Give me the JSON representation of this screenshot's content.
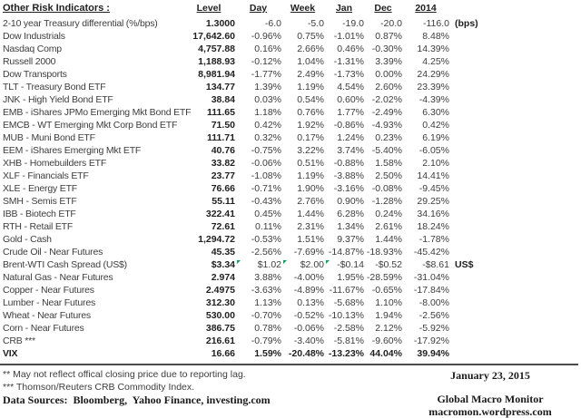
{
  "colors": {
    "flag_green": "#00a651",
    "text": "#3d3d3d",
    "bold_text": "#1f1f1f",
    "rule": "#4a4a4a"
  },
  "chart_data": {
    "type": "table",
    "title": "Other Risk Indicators :",
    "columns": [
      "Level",
      "Day",
      "Week",
      "Jan",
      "Dec",
      "2014"
    ],
    "rows": [
      {
        "name": "2-10 year Treasury differential (%/bps)",
        "level": "1.3000",
        "day": "-6.0",
        "week": "-5.0",
        "jan": "-19.0",
        "dec": "-20.0",
        "y2014": "-116.0",
        "unit": "(bps)"
      },
      {
        "name": "Dow Industrials",
        "level": "17,642.60",
        "day": "-0.96%",
        "week": "0.75%",
        "jan": "-1.01%",
        "dec": "0.87%",
        "y2014": "8.48%"
      },
      {
        "name": "Nasdaq Comp",
        "level": "4,757.88",
        "day": "0.16%",
        "week": "2.66%",
        "jan": "0.46%",
        "dec": "-0.30%",
        "y2014": "14.39%"
      },
      {
        "name": "Russell 2000",
        "level": "1,188.93",
        "day": "-0.12%",
        "week": "1.04%",
        "jan": "-1.31%",
        "dec": "3.39%",
        "y2014": "4.25%"
      },
      {
        "name": "Dow Transports",
        "level": "8,981.94",
        "day": "-1.77%",
        "week": "2.49%",
        "jan": "-1.73%",
        "dec": "0.00%",
        "y2014": "24.29%"
      },
      {
        "name": "TLT - Treasury Bond ETF",
        "level": "134.77",
        "day": "1.39%",
        "week": "1.19%",
        "jan": "4.54%",
        "dec": "2.60%",
        "y2014": "23.39%"
      },
      {
        "name": "JNK - High Yield Bond ETF",
        "level": "38.84",
        "day": "0.03%",
        "week": "0.54%",
        "jan": "0.60%",
        "dec": "-2.02%",
        "y2014": "-4.39%"
      },
      {
        "name": "EMB - iShares JPMo Emerging Mkt Bond ETF",
        "level": "111.65",
        "day": "1.18%",
        "week": "0.76%",
        "jan": "1.77%",
        "dec": "-2.49%",
        "y2014": "6.30%"
      },
      {
        "name": "EMCB - WT Emerging Mkt Corp Bond ETF",
        "level": "71.50",
        "day": "0.42%",
        "week": "1.92%",
        "jan": "-0.86%",
        "dec": "-4.93%",
        "y2014": "0.42%"
      },
      {
        "name": "MUB - Muni Bond ETF",
        "level": "111.71",
        "day": "0.32%",
        "week": "0.17%",
        "jan": "1.24%",
        "dec": "0.23%",
        "y2014": "6.19%"
      },
      {
        "name": "EEM - iShares Emerging Mkt ETF",
        "level": "40.76",
        "day": "-0.75%",
        "week": "3.22%",
        "jan": "3.74%",
        "dec": "-5.40%",
        "y2014": "-6.05%"
      },
      {
        "name": "XHB - Homebuilders ETF",
        "level": "33.82",
        "day": "-0.06%",
        "week": "0.51%",
        "jan": "-0.88%",
        "dec": "1.58%",
        "y2014": "2.10%"
      },
      {
        "name": "XLF - Financials ETF",
        "level": "23.77",
        "day": "-1.08%",
        "week": "1.19%",
        "jan": "-3.88%",
        "dec": "2.50%",
        "y2014": "14.41%"
      },
      {
        "name": "XLE - Energy ETF",
        "level": "76.66",
        "day": "-0.71%",
        "week": "1.90%",
        "jan": "-3.16%",
        "dec": "-0.08%",
        "y2014": "-9.45%"
      },
      {
        "name": "SMH - Semis ETF",
        "level": "55.11",
        "day": "-0.43%",
        "week": "2.76%",
        "jan": "0.90%",
        "dec": "-1.28%",
        "y2014": "29.25%"
      },
      {
        "name": "IBB - Biotech ETF",
        "level": "322.41",
        "day": "0.45%",
        "week": "1.44%",
        "jan": "6.28%",
        "dec": "0.24%",
        "y2014": "34.16%"
      },
      {
        "name": "RTH - Retail ETF",
        "level": "72.61",
        "day": "0.11%",
        "week": "2.31%",
        "jan": "1.34%",
        "dec": "2.61%",
        "y2014": "18.24%"
      },
      {
        "name": "Gold - Cash",
        "level": "1,294.72",
        "day": "-0.53%",
        "week": "1.51%",
        "jan": "9.37%",
        "dec": "1.44%",
        "y2014": "-1.78%"
      },
      {
        "name": "Crude Oil - Near Futures",
        "level": "45.35",
        "day": "-2.56%",
        "week": "-7.69%",
        "jan": "-14.87%",
        "dec": "-18.93%",
        "y2014": "-45.42%"
      },
      {
        "name": "Brent-WTI Cash Spread (US$)",
        "level": "$3.34",
        "day": "$1.02",
        "week": "$2.00",
        "jan": "-$0.14",
        "dec": "-$0.52",
        "y2014": "-$8.61",
        "unit": "US$",
        "flags": [
          "day",
          "week",
          "jan"
        ]
      },
      {
        "name": "Natural Gas - Near Futures",
        "level": "2.974",
        "day": "3.88%",
        "week": "-4.00%",
        "jan": "1.95%",
        "dec": "-28.59%",
        "y2014": "-31.04%"
      },
      {
        "name": "Copper - Near Futures",
        "level": "2.4975",
        "day": "-3.63%",
        "week": "-4.89%",
        "jan": "-11.67%",
        "dec": "-0.65%",
        "y2014": "-17.84%"
      },
      {
        "name": "Lumber - Near Futures",
        "level": "312.30",
        "day": "1.13%",
        "week": "0.13%",
        "jan": "-5.68%",
        "dec": "1.10%",
        "y2014": "-8.00%"
      },
      {
        "name": "Wheat - Near Futures",
        "level": "530.00",
        "day": "-0.70%",
        "week": "-0.52%",
        "jan": "-10.13%",
        "dec": "1.94%",
        "y2014": "-2.56%"
      },
      {
        "name": "Corn - Near Futures",
        "level": "386.75",
        "day": "0.78%",
        "week": "-0.06%",
        "jan": "-2.58%",
        "dec": "2.12%",
        "y2014": "-5.92%"
      },
      {
        "name": "CRB ***",
        "level": "216.61",
        "day": "-0.79%",
        "week": "-3.40%",
        "jan": "-5.81%",
        "dec": "-9.60%",
        "y2014": "-17.92%"
      },
      {
        "name": "VIX",
        "level": "16.66",
        "day": "1.59%",
        "week": "-20.48%",
        "jan": "-13.23%",
        "dec": "44.04%",
        "y2014": "39.94%",
        "bold": true
      }
    ]
  },
  "footer": {
    "note2": "** May not reflect offical closing price due to reporting lag.",
    "note3": "*** Thomson/Reuters CRB Commodity Index.",
    "sources": "Data Sources:  Bloomberg,  Yahoo Finance, investing.com",
    "date": "January 23, 2015",
    "site_name": "Global Macro Monitor",
    "site_url": "macromon.wordpress.com"
  }
}
